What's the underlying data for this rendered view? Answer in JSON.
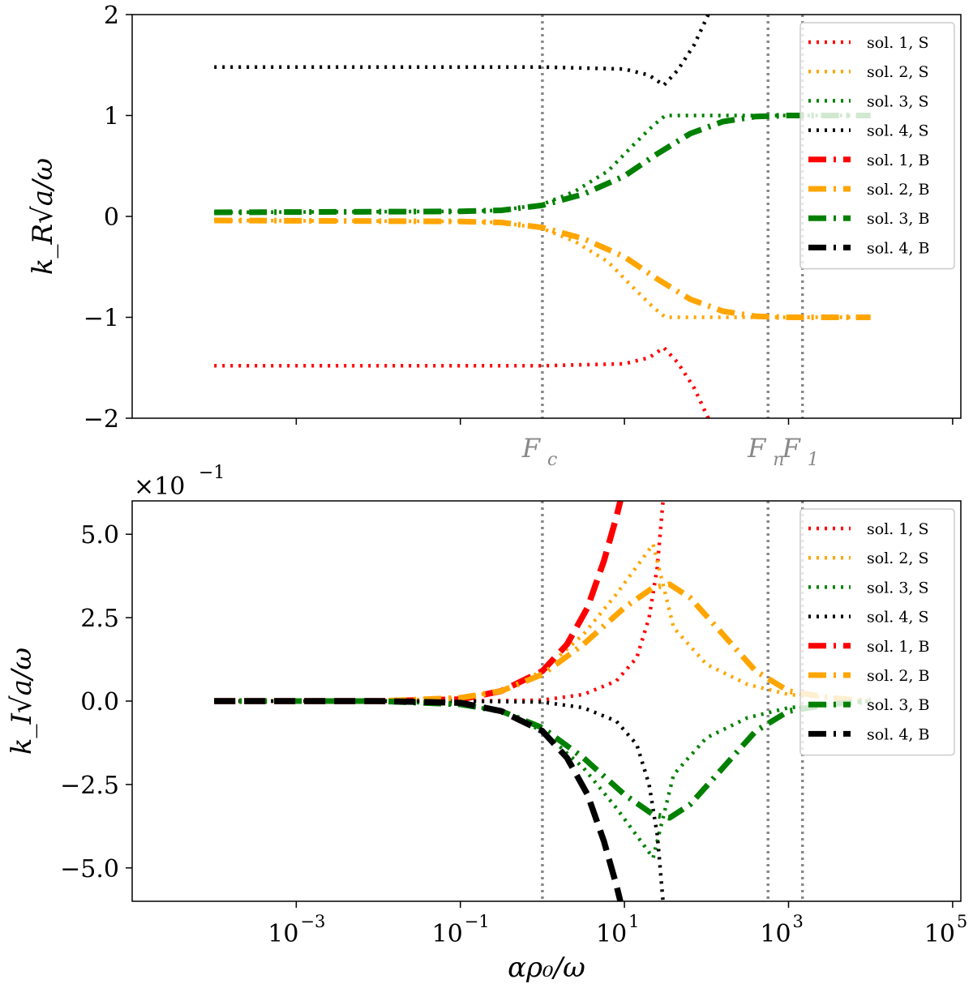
{
  "chart_data": [
    {
      "type": "line",
      "panel": "top",
      "ylabel": "k_R√a/ω",
      "xlabel": "",
      "xscale": "log",
      "xlim_exp": [
        -5,
        5.1
      ],
      "ylim": [
        -2,
        2
      ],
      "yticks": [
        -2,
        -1,
        0,
        1,
        2
      ],
      "ytick_labels": [
        "−2",
        "−1",
        "0",
        "1",
        "2"
      ],
      "grid": false,
      "legend_position": "top-right",
      "vlines": [
        {
          "name": "Fc",
          "label": "F",
          "sub": "c",
          "x_exp": 0.0
        },
        {
          "name": "Fn",
          "label": "F",
          "sub": "n",
          "x_exp": 2.75
        },
        {
          "name": "F1",
          "label": "F",
          "sub": "1",
          "x_exp": 3.17
        }
      ],
      "series": [
        {
          "name": "sol. 1, S",
          "color": "#ff0000",
          "style": "dotted",
          "points": [
            [
              -4.0,
              -1.48
            ],
            [
              -1.0,
              -1.48
            ],
            [
              0.0,
              -1.48
            ],
            [
              1.0,
              -1.46
            ],
            [
              1.3,
              -1.4
            ],
            [
              1.48,
              -1.3
            ],
            [
              1.65,
              -1.45
            ],
            [
              1.85,
              -1.7
            ],
            [
              2.05,
              -2.05
            ]
          ]
        },
        {
          "name": "sol. 2, S",
          "color": "#ffa500",
          "style": "dotted",
          "points": [
            [
              -4.0,
              -0.04
            ],
            [
              -1.0,
              -0.05
            ],
            [
              -0.5,
              -0.06
            ],
            [
              0.0,
              -0.12
            ],
            [
              0.4,
              -0.25
            ],
            [
              0.8,
              -0.45
            ],
            [
              1.1,
              -0.7
            ],
            [
              1.35,
              -0.9
            ],
            [
              1.5,
              -1.0
            ],
            [
              2.0,
              -1.0
            ],
            [
              3.0,
              -1.0
            ],
            [
              4.0,
              -1.0
            ]
          ]
        },
        {
          "name": "sol. 3, S",
          "color": "#008000",
          "style": "dotted",
          "points": [
            [
              -4.0,
              0.04
            ],
            [
              -1.0,
              0.05
            ],
            [
              -0.5,
              0.06
            ],
            [
              0.0,
              0.12
            ],
            [
              0.4,
              0.25
            ],
            [
              0.8,
              0.45
            ],
            [
              1.1,
              0.7
            ],
            [
              1.35,
              0.9
            ],
            [
              1.5,
              1.0
            ],
            [
              2.0,
              1.0
            ],
            [
              3.0,
              1.0
            ],
            [
              4.0,
              1.0
            ]
          ]
        },
        {
          "name": "sol. 4, S",
          "color": "#000000",
          "style": "dotted",
          "points": [
            [
              -4.0,
              1.48
            ],
            [
              -1.0,
              1.48
            ],
            [
              0.0,
              1.48
            ],
            [
              1.0,
              1.46
            ],
            [
              1.3,
              1.4
            ],
            [
              1.48,
              1.3
            ],
            [
              1.65,
              1.45
            ],
            [
              1.85,
              1.7
            ],
            [
              2.05,
              2.05
            ]
          ]
        },
        {
          "name": "sol. 1, B",
          "color": "#ff0000",
          "style": "dashdot",
          "points": []
        },
        {
          "name": "sol. 2, B",
          "color": "#ffa500",
          "style": "dashdot",
          "points": [
            [
              -4.0,
              -0.04
            ],
            [
              -1.0,
              -0.05
            ],
            [
              -0.5,
              -0.06
            ],
            [
              0.0,
              -0.11
            ],
            [
              0.5,
              -0.22
            ],
            [
              1.0,
              -0.4
            ],
            [
              1.4,
              -0.62
            ],
            [
              1.8,
              -0.82
            ],
            [
              2.2,
              -0.94
            ],
            [
              2.6,
              -0.99
            ],
            [
              3.0,
              -1.0
            ],
            [
              4.0,
              -1.0
            ]
          ]
        },
        {
          "name": "sol. 3, B",
          "color": "#008000",
          "style": "dashdot",
          "points": [
            [
              -4.0,
              0.04
            ],
            [
              -1.0,
              0.05
            ],
            [
              -0.5,
              0.06
            ],
            [
              0.0,
              0.11
            ],
            [
              0.5,
              0.22
            ],
            [
              1.0,
              0.4
            ],
            [
              1.4,
              0.62
            ],
            [
              1.8,
              0.82
            ],
            [
              2.2,
              0.94
            ],
            [
              2.6,
              0.99
            ],
            [
              3.0,
              1.0
            ],
            [
              4.0,
              1.0
            ]
          ]
        },
        {
          "name": "sol. 4, B",
          "color": "#000000",
          "style": "dashdot",
          "points": []
        }
      ]
    },
    {
      "type": "line",
      "panel": "bottom",
      "ylabel": "k_I√a/ω",
      "xlabel": "αρ₀/ω",
      "xscale": "log",
      "xlim_exp": [
        -5,
        5.1
      ],
      "ylim": [
        -0.6,
        0.6
      ],
      "yticks": [
        -0.5,
        -0.25,
        0.0,
        0.25,
        0.5
      ],
      "ytick_labels": [
        "−5.0",
        "−2.5",
        "0.0",
        "2.5",
        "5.0"
      ],
      "multiplier": {
        "base": "×10",
        "exp": "−1"
      },
      "xticks_exp": [
        -3,
        -1,
        1,
        3,
        5
      ],
      "grid": false,
      "legend_position": "top-right",
      "vlines": [
        {
          "name": "Fc",
          "x_exp": 0.0
        },
        {
          "name": "Fn",
          "x_exp": 2.75
        },
        {
          "name": "F1",
          "x_exp": 3.17
        }
      ],
      "series": [
        {
          "name": "sol. 1, S",
          "color": "#ff0000",
          "style": "dotted",
          "points": [
            [
              -4.0,
              0.0
            ],
            [
              -1.0,
              0.0
            ],
            [
              0.0,
              0.003
            ],
            [
              0.5,
              0.02
            ],
            [
              0.9,
              0.06
            ],
            [
              1.15,
              0.13
            ],
            [
              1.3,
              0.25
            ],
            [
              1.4,
              0.4
            ],
            [
              1.47,
              0.6
            ]
          ]
        },
        {
          "name": "sol. 2, S",
          "color": "#ffa500",
          "style": "dotted",
          "points": [
            [
              -4.0,
              0.0
            ],
            [
              -2.0,
              0.0
            ],
            [
              -1.0,
              0.01
            ],
            [
              -0.5,
              0.03
            ],
            [
              0.0,
              0.09
            ],
            [
              0.5,
              0.2
            ],
            [
              0.9,
              0.32
            ],
            [
              1.2,
              0.42
            ],
            [
              1.35,
              0.47
            ],
            [
              1.45,
              0.37
            ],
            [
              1.6,
              0.22
            ],
            [
              2.0,
              0.11
            ],
            [
              2.5,
              0.05
            ],
            [
              3.0,
              0.02
            ],
            [
              4.0,
              0.0
            ]
          ]
        },
        {
          "name": "sol. 3, S",
          "color": "#008000",
          "style": "dotted",
          "points": [
            [
              -4.0,
              0.0
            ],
            [
              -2.0,
              0.0
            ],
            [
              -1.0,
              -0.01
            ],
            [
              -0.5,
              -0.03
            ],
            [
              0.0,
              -0.09
            ],
            [
              0.5,
              -0.2
            ],
            [
              0.9,
              -0.32
            ],
            [
              1.2,
              -0.42
            ],
            [
              1.35,
              -0.47
            ],
            [
              1.45,
              -0.37
            ],
            [
              1.6,
              -0.22
            ],
            [
              2.0,
              -0.11
            ],
            [
              2.5,
              -0.05
            ],
            [
              3.0,
              -0.02
            ],
            [
              4.0,
              0.0
            ]
          ]
        },
        {
          "name": "sol. 4, S",
          "color": "#000000",
          "style": "dotted",
          "points": [
            [
              -4.0,
              0.0
            ],
            [
              -1.0,
              0.0
            ],
            [
              0.0,
              -0.003
            ],
            [
              0.5,
              -0.02
            ],
            [
              0.9,
              -0.06
            ],
            [
              1.15,
              -0.13
            ],
            [
              1.3,
              -0.25
            ],
            [
              1.4,
              -0.4
            ],
            [
              1.47,
              -0.6
            ]
          ]
        },
        {
          "name": "sol. 1, B",
          "color": "#ff0000",
          "style": "dashed",
          "points": [
            [
              -4.0,
              0.0
            ],
            [
              -2.0,
              0.0
            ],
            [
              -1.0,
              0.005
            ],
            [
              -0.5,
              0.03
            ],
            [
              0.0,
              0.09
            ],
            [
              0.3,
              0.17
            ],
            [
              0.55,
              0.28
            ],
            [
              0.75,
              0.42
            ],
            [
              0.9,
              0.55
            ],
            [
              0.95,
              0.6
            ]
          ]
        },
        {
          "name": "sol. 2, B",
          "color": "#ffa500",
          "style": "dashdot",
          "points": [
            [
              -4.0,
              0.0
            ],
            [
              -2.0,
              0.0
            ],
            [
              -1.0,
              0.01
            ],
            [
              -0.5,
              0.03
            ],
            [
              0.0,
              0.08
            ],
            [
              0.5,
              0.17
            ],
            [
              1.0,
              0.28
            ],
            [
              1.35,
              0.34
            ],
            [
              1.55,
              0.35
            ],
            [
              1.8,
              0.31
            ],
            [
              2.2,
              0.2
            ],
            [
              2.6,
              0.09
            ],
            [
              3.0,
              0.03
            ],
            [
              3.5,
              0.01
            ],
            [
              4.0,
              0.0
            ]
          ]
        },
        {
          "name": "sol. 3, B",
          "color": "#008000",
          "style": "dashdot",
          "points": [
            [
              -4.0,
              0.0
            ],
            [
              -2.0,
              0.0
            ],
            [
              -1.0,
              -0.01
            ],
            [
              -0.5,
              -0.03
            ],
            [
              0.0,
              -0.08
            ],
            [
              0.5,
              -0.17
            ],
            [
              1.0,
              -0.28
            ],
            [
              1.35,
              -0.34
            ],
            [
              1.55,
              -0.35
            ],
            [
              1.8,
              -0.31
            ],
            [
              2.2,
              -0.2
            ],
            [
              2.6,
              -0.09
            ],
            [
              3.0,
              -0.03
            ],
            [
              3.5,
              -0.01
            ],
            [
              4.0,
              0.0
            ]
          ]
        },
        {
          "name": "sol. 4, B",
          "color": "#000000",
          "style": "dashed",
          "points": [
            [
              -4.0,
              0.0
            ],
            [
              -2.0,
              0.0
            ],
            [
              -1.0,
              -0.005
            ],
            [
              -0.5,
              -0.03
            ],
            [
              0.0,
              -0.09
            ],
            [
              0.3,
              -0.17
            ],
            [
              0.55,
              -0.28
            ],
            [
              0.75,
              -0.42
            ],
            [
              0.9,
              -0.55
            ],
            [
              0.95,
              -0.6
            ]
          ]
        }
      ]
    }
  ],
  "legend": {
    "entries": [
      {
        "label": "sol. 1, S",
        "color": "#ff0000",
        "style": "dotted"
      },
      {
        "label": "sol. 2, S",
        "color": "#ffa500",
        "style": "dotted"
      },
      {
        "label": "sol. 3, S",
        "color": "#008000",
        "style": "dotted"
      },
      {
        "label": "sol. 4, S",
        "color": "#000000",
        "style": "dotted"
      },
      {
        "label": "sol. 1, B",
        "color": "#ff0000",
        "style": "dashdot"
      },
      {
        "label": "sol. 2, B",
        "color": "#ffa500",
        "style": "dashdot"
      },
      {
        "label": "sol. 3, B",
        "color": "#008000",
        "style": "dashdot"
      },
      {
        "label": "sol. 4, B",
        "color": "#000000",
        "style": "dashdot"
      }
    ]
  },
  "colors": {
    "vline": "#888888",
    "axis": "#000000",
    "legend_border": "#cccccc"
  }
}
